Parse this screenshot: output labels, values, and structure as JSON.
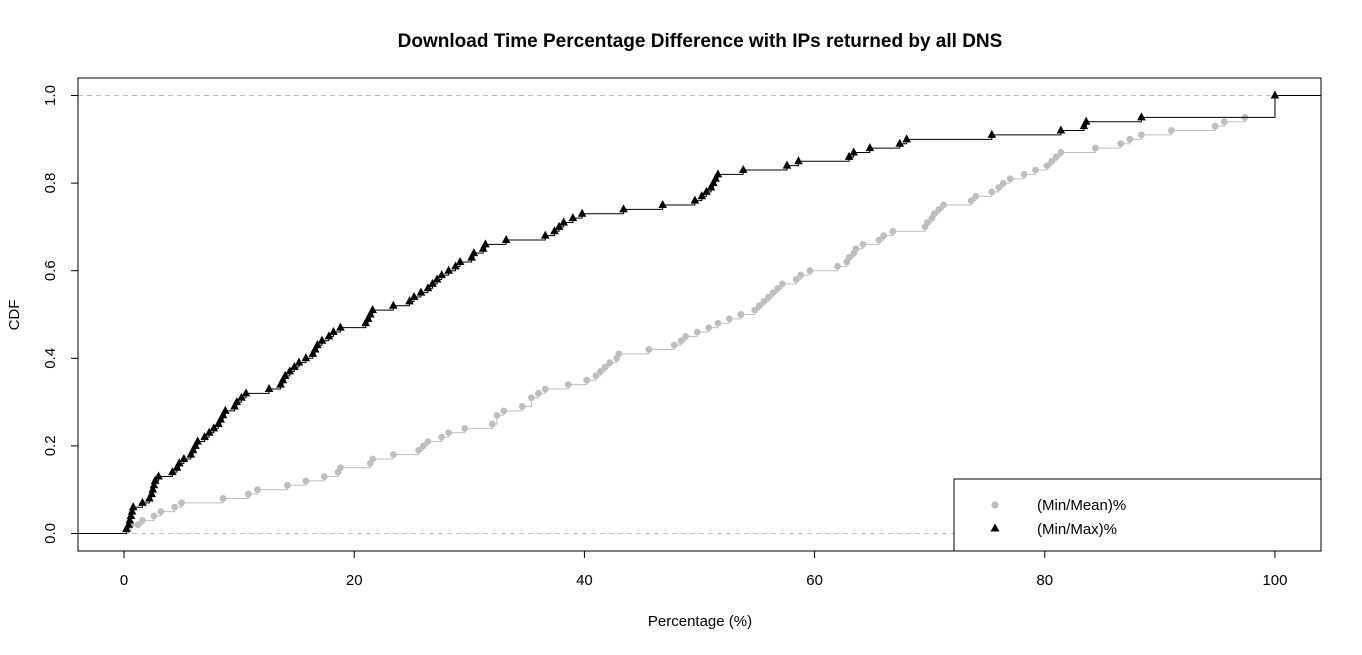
{
  "colors": {
    "series_mean": "#bebebe",
    "series_max": "#000000",
    "gridline": "#bebebe"
  },
  "chart_data": {
    "type": "line",
    "subtype": "step-ecdf",
    "title": "Download Time Percentage Difference with IPs returned by all DNS",
    "xlabel": "Percentage (%)",
    "ylabel": "CDF",
    "xlim": [
      -4,
      104
    ],
    "ylim": [
      -0.04,
      1.04
    ],
    "x_ticks": [
      0,
      20,
      40,
      60,
      80,
      100
    ],
    "x_tick_labels": [
      "0",
      "20",
      "40",
      "60",
      "80",
      "100"
    ],
    "y_ticks": [
      0.0,
      0.2,
      0.4,
      0.6,
      0.8,
      1.0
    ],
    "y_tick_labels": [
      "0.0",
      "0.2",
      "0.4",
      "0.6",
      "0.8",
      "1.0"
    ],
    "reference_lines_y": [
      0,
      1
    ],
    "legend_position": "bottom-right",
    "series": [
      {
        "name": "(Min/Mean)%",
        "marker": "circle",
        "color": "#bebebe",
        "points": [
          [
            0.4,
            0.01
          ],
          [
            0.6,
            0.02
          ],
          [
            1.2,
            0.02
          ],
          [
            1.6,
            0.03
          ],
          [
            2.6,
            0.04
          ],
          [
            3.2,
            0.05
          ],
          [
            4.4,
            0.06
          ],
          [
            5.0,
            0.07
          ],
          [
            8.6,
            0.08
          ],
          [
            10.8,
            0.09
          ],
          [
            11.6,
            0.1
          ],
          [
            14.2,
            0.11
          ],
          [
            15.8,
            0.12
          ],
          [
            17.4,
            0.13
          ],
          [
            18.6,
            0.14
          ],
          [
            18.8,
            0.15
          ],
          [
            21.4,
            0.16
          ],
          [
            21.6,
            0.17
          ],
          [
            23.4,
            0.18
          ],
          [
            25.6,
            0.19
          ],
          [
            26.0,
            0.2
          ],
          [
            26.4,
            0.21
          ],
          [
            27.6,
            0.22
          ],
          [
            28.2,
            0.23
          ],
          [
            29.6,
            0.24
          ],
          [
            32.0,
            0.25
          ],
          [
            32.4,
            0.27
          ],
          [
            33.0,
            0.28
          ],
          [
            34.6,
            0.29
          ],
          [
            35.4,
            0.31
          ],
          [
            36.0,
            0.32
          ],
          [
            36.6,
            0.33
          ],
          [
            38.6,
            0.34
          ],
          [
            40.2,
            0.35
          ],
          [
            41.0,
            0.36
          ],
          [
            41.4,
            0.37
          ],
          [
            41.8,
            0.38
          ],
          [
            42.2,
            0.39
          ],
          [
            42.8,
            0.4
          ],
          [
            43.0,
            0.41
          ],
          [
            45.6,
            0.42
          ],
          [
            47.8,
            0.43
          ],
          [
            48.4,
            0.44
          ],
          [
            48.8,
            0.45
          ],
          [
            49.8,
            0.46
          ],
          [
            50.8,
            0.47
          ],
          [
            51.6,
            0.48
          ],
          [
            52.6,
            0.49
          ],
          [
            53.6,
            0.5
          ],
          [
            54.8,
            0.51
          ],
          [
            55.2,
            0.52
          ],
          [
            55.6,
            0.53
          ],
          [
            56.0,
            0.54
          ],
          [
            56.4,
            0.55
          ],
          [
            56.8,
            0.56
          ],
          [
            57.2,
            0.57
          ],
          [
            58.4,
            0.58
          ],
          [
            58.8,
            0.59
          ],
          [
            59.6,
            0.6
          ],
          [
            62.0,
            0.61
          ],
          [
            62.8,
            0.62
          ],
          [
            63.0,
            0.63
          ],
          [
            63.4,
            0.64
          ],
          [
            63.6,
            0.65
          ],
          [
            64.2,
            0.66
          ],
          [
            65.6,
            0.67
          ],
          [
            66.0,
            0.68
          ],
          [
            66.8,
            0.69
          ],
          [
            69.6,
            0.7
          ],
          [
            69.8,
            0.71
          ],
          [
            70.2,
            0.72
          ],
          [
            70.4,
            0.73
          ],
          [
            70.8,
            0.74
          ],
          [
            71.2,
            0.75
          ],
          [
            73.6,
            0.76
          ],
          [
            74.0,
            0.77
          ],
          [
            75.4,
            0.78
          ],
          [
            76.0,
            0.79
          ],
          [
            76.4,
            0.8
          ],
          [
            77.0,
            0.81
          ],
          [
            78.2,
            0.82
          ],
          [
            79.2,
            0.83
          ],
          [
            80.2,
            0.84
          ],
          [
            80.6,
            0.85
          ],
          [
            81.0,
            0.86
          ],
          [
            81.4,
            0.87
          ],
          [
            84.4,
            0.88
          ],
          [
            86.6,
            0.89
          ],
          [
            87.4,
            0.9
          ],
          [
            88.4,
            0.91
          ],
          [
            91.0,
            0.92
          ],
          [
            94.8,
            0.93
          ],
          [
            95.6,
            0.94
          ],
          [
            97.4,
            0.95
          ]
        ]
      },
      {
        "name": "(Min/Max)%",
        "marker": "triangle",
        "color": "#000000",
        "points": [
          [
            0.2,
            0.01
          ],
          [
            0.4,
            0.02
          ],
          [
            0.5,
            0.03
          ],
          [
            0.6,
            0.04
          ],
          [
            0.7,
            0.05
          ],
          [
            0.8,
            0.06
          ],
          [
            1.6,
            0.07
          ],
          [
            2.2,
            0.08
          ],
          [
            2.4,
            0.09
          ],
          [
            2.5,
            0.1
          ],
          [
            2.6,
            0.11
          ],
          [
            2.7,
            0.12
          ],
          [
            3.0,
            0.13
          ],
          [
            4.2,
            0.14
          ],
          [
            4.6,
            0.15
          ],
          [
            4.8,
            0.16
          ],
          [
            5.2,
            0.17
          ],
          [
            5.8,
            0.18
          ],
          [
            6.0,
            0.19
          ],
          [
            6.2,
            0.2
          ],
          [
            6.4,
            0.21
          ],
          [
            7.0,
            0.22
          ],
          [
            7.4,
            0.23
          ],
          [
            7.8,
            0.24
          ],
          [
            8.2,
            0.25
          ],
          [
            8.4,
            0.26
          ],
          [
            8.6,
            0.27
          ],
          [
            8.8,
            0.28
          ],
          [
            9.6,
            0.29
          ],
          [
            9.8,
            0.3
          ],
          [
            10.2,
            0.31
          ],
          [
            10.6,
            0.32
          ],
          [
            12.6,
            0.33
          ],
          [
            13.6,
            0.34
          ],
          [
            13.8,
            0.35
          ],
          [
            14.0,
            0.36
          ],
          [
            14.4,
            0.37
          ],
          [
            14.8,
            0.38
          ],
          [
            15.2,
            0.39
          ],
          [
            15.8,
            0.4
          ],
          [
            16.4,
            0.41
          ],
          [
            16.6,
            0.42
          ],
          [
            16.8,
            0.43
          ],
          [
            17.2,
            0.44
          ],
          [
            17.8,
            0.45
          ],
          [
            18.2,
            0.46
          ],
          [
            18.8,
            0.47
          ],
          [
            21.0,
            0.48
          ],
          [
            21.2,
            0.49
          ],
          [
            21.4,
            0.5
          ],
          [
            21.6,
            0.51
          ],
          [
            23.4,
            0.52
          ],
          [
            24.8,
            0.53
          ],
          [
            25.2,
            0.54
          ],
          [
            25.8,
            0.55
          ],
          [
            26.4,
            0.56
          ],
          [
            26.8,
            0.57
          ],
          [
            27.2,
            0.58
          ],
          [
            27.6,
            0.59
          ],
          [
            28.2,
            0.6
          ],
          [
            28.8,
            0.61
          ],
          [
            29.2,
            0.62
          ],
          [
            30.2,
            0.63
          ],
          [
            30.4,
            0.64
          ],
          [
            31.2,
            0.65
          ],
          [
            31.4,
            0.66
          ],
          [
            33.2,
            0.67
          ],
          [
            36.6,
            0.68
          ],
          [
            37.4,
            0.69
          ],
          [
            37.8,
            0.7
          ],
          [
            38.2,
            0.71
          ],
          [
            39.0,
            0.72
          ],
          [
            39.8,
            0.73
          ],
          [
            43.4,
            0.74
          ],
          [
            46.8,
            0.75
          ],
          [
            49.6,
            0.76
          ],
          [
            50.2,
            0.77
          ],
          [
            50.6,
            0.78
          ],
          [
            51.0,
            0.79
          ],
          [
            51.2,
            0.8
          ],
          [
            51.4,
            0.81
          ],
          [
            51.6,
            0.82
          ],
          [
            53.8,
            0.83
          ],
          [
            57.6,
            0.84
          ],
          [
            58.6,
            0.85
          ],
          [
            63.0,
            0.86
          ],
          [
            63.4,
            0.87
          ],
          [
            64.8,
            0.88
          ],
          [
            67.4,
            0.89
          ],
          [
            68.0,
            0.9
          ],
          [
            75.4,
            0.91
          ],
          [
            81.4,
            0.92
          ],
          [
            83.4,
            0.93
          ],
          [
            83.6,
            0.94
          ],
          [
            88.4,
            0.95
          ],
          [
            100.0,
            1.0
          ]
        ]
      }
    ]
  }
}
